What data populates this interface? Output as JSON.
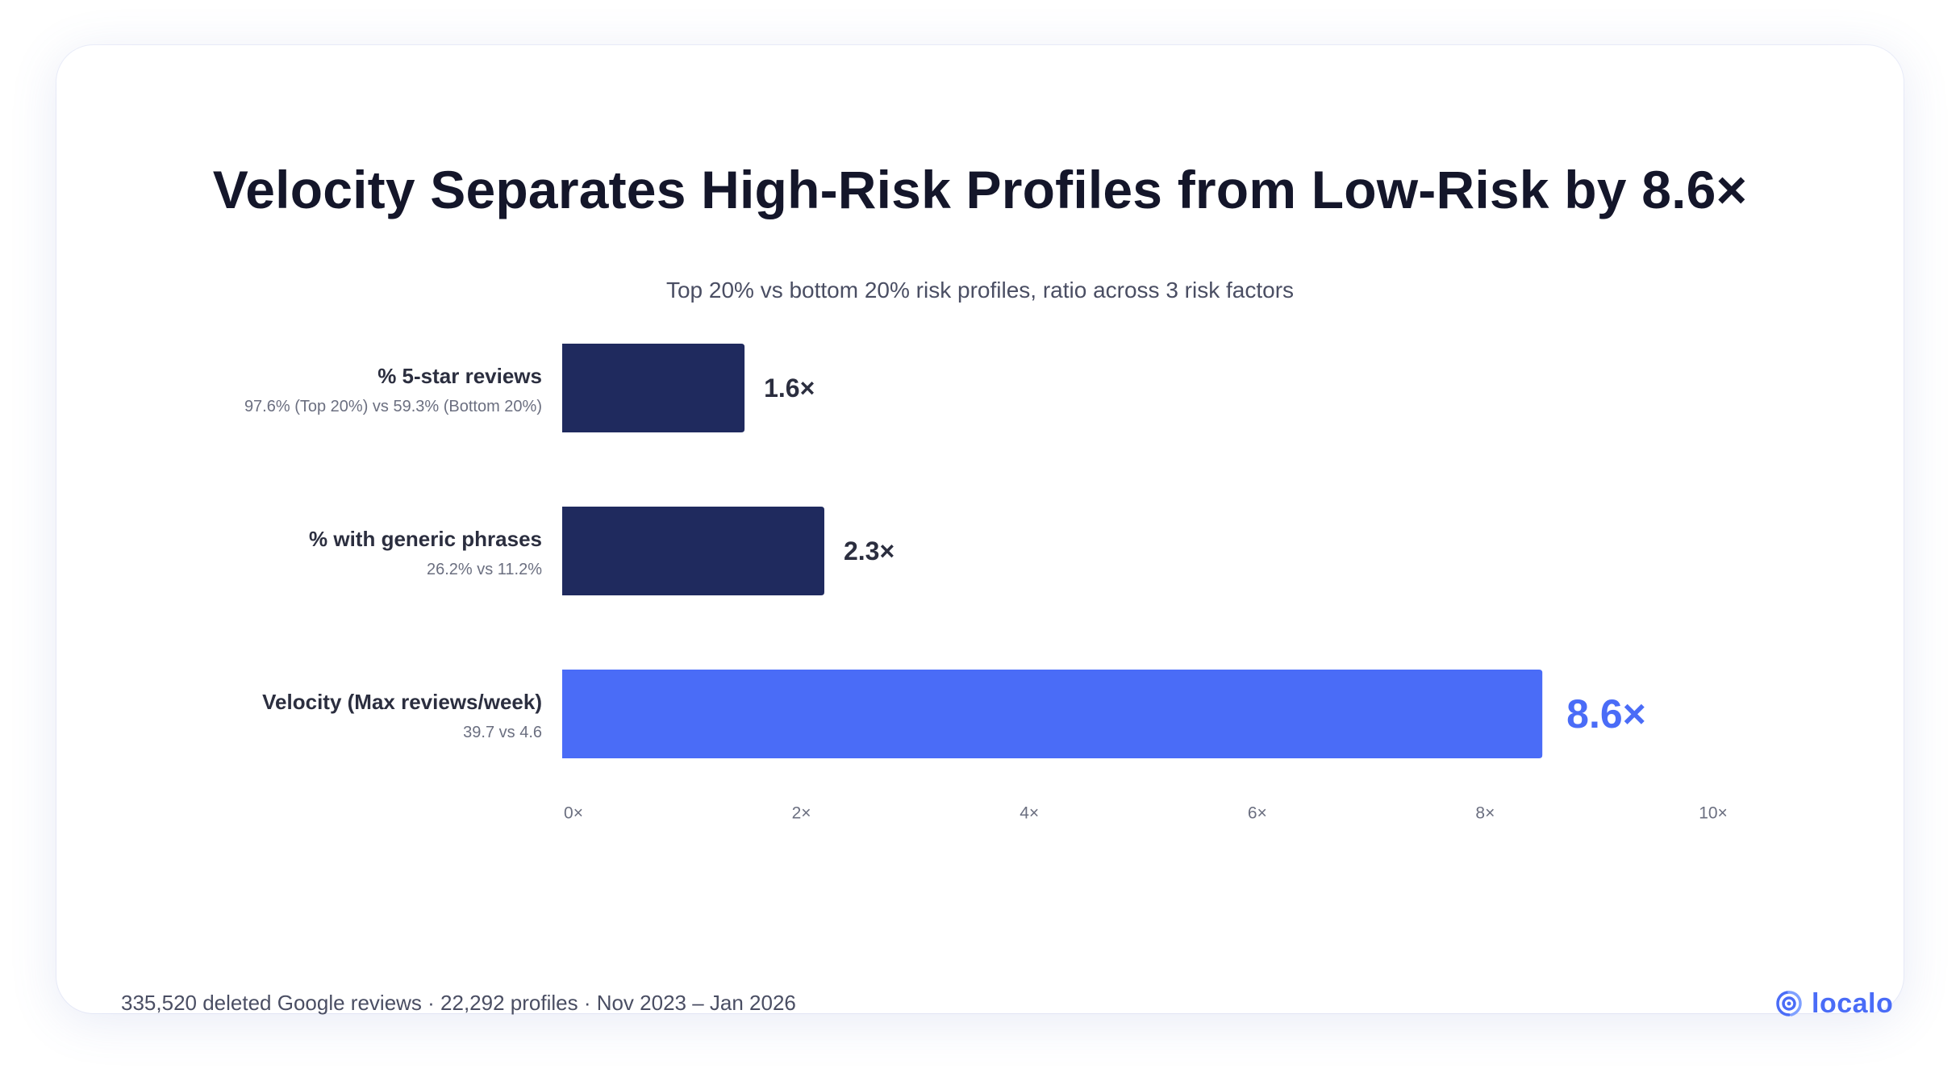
{
  "chart_data": {
    "type": "bar",
    "orientation": "horizontal",
    "title": "Velocity Separates High-Risk Profiles from Low-Risk by 8.6×",
    "subtitle": "Top 20% vs bottom 20% risk profiles, ratio across 3 risk factors",
    "categories": [
      {
        "label": "% 5-star reviews",
        "detail": "97.6% (Top 20%) vs 59.3% (Bottom 20%)"
      },
      {
        "label": "% with generic phrases",
        "detail": "26.2% vs 11.2%"
      },
      {
        "label": "Velocity (Max reviews/week)",
        "detail": "39.7 vs 4.6"
      }
    ],
    "values": [
      1.6,
      2.3,
      8.6
    ],
    "value_labels": [
      "1.6×",
      "2.3×",
      "8.6×"
    ],
    "highlight_index": 2,
    "xlim": [
      0,
      10
    ],
    "x_ticks": [
      0,
      2,
      4,
      6,
      8,
      10
    ],
    "x_tick_labels": [
      "0×",
      "2×",
      "4×",
      "6×",
      "8×",
      "10×"
    ],
    "grid": false,
    "colors": {
      "bar": "#1f2a5e",
      "highlight": "#4a6cf7",
      "label": "#2b2e3f",
      "detail": "#6b6f80",
      "tick": "#6b6f80"
    }
  },
  "footer": {
    "note": "335,520 deleted Google reviews · 22,292 profiles · Nov 2023 – Jan 2026"
  },
  "brand": {
    "name": "localo",
    "icon": "location-pin-icon",
    "color": "#4a6cf7"
  }
}
